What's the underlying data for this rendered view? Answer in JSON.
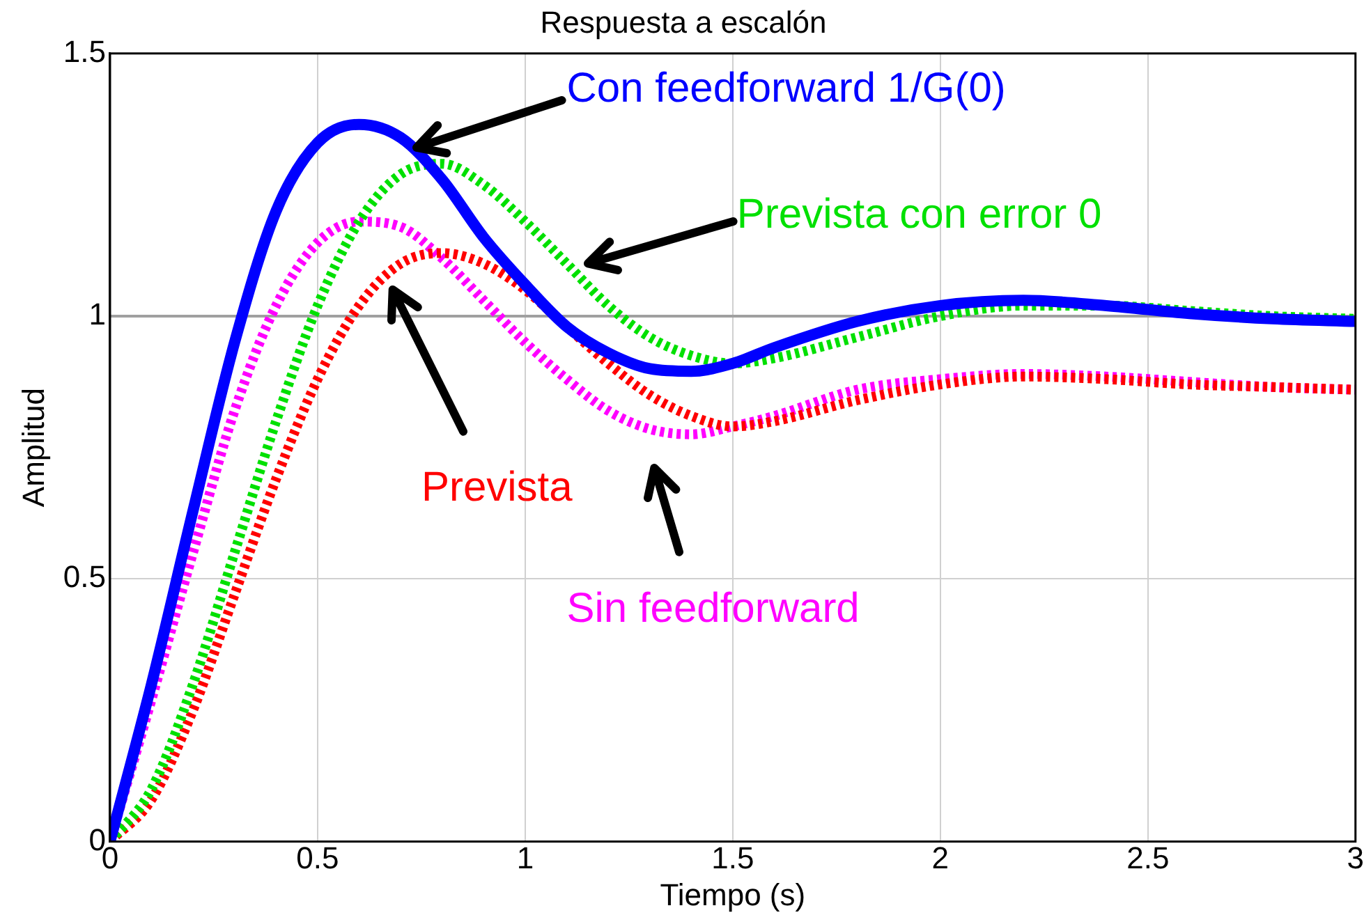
{
  "chart_data": {
    "type": "line",
    "title": "Respuesta a escalón",
    "xlabel": "Tiempo (s)",
    "ylabel": "Amplitud",
    "x": [
      0,
      0.1,
      0.2,
      0.3,
      0.4,
      0.5,
      0.6,
      0.7,
      0.8,
      0.9,
      1.0,
      1.1,
      1.2,
      1.3,
      1.4,
      1.5,
      1.6,
      1.8,
      2.0,
      2.2,
      2.4,
      2.6,
      2.8,
      3.0
    ],
    "series": [
      {
        "name": "Con feedforward 1/G(0)",
        "color": "#0000ff",
        "line_style": "solid",
        "values": [
          0,
          0.3,
          0.63,
          0.95,
          1.2,
          1.33,
          1.365,
          1.34,
          1.26,
          1.15,
          1.06,
          0.98,
          0.93,
          0.9,
          0.895,
          0.91,
          0.94,
          0.99,
          1.02,
          1.03,
          1.02,
          1.005,
          0.995,
          0.99
        ]
      },
      {
        "name": "Prevista con error 0",
        "color": "#00e000",
        "line_style": "dotted",
        "values": [
          0,
          0.1,
          0.3,
          0.55,
          0.8,
          1.02,
          1.18,
          1.27,
          1.29,
          1.25,
          1.18,
          1.1,
          1.02,
          0.96,
          0.925,
          0.91,
          0.92,
          0.96,
          1.0,
          1.02,
          1.02,
          1.01,
          1.0,
          0.995
        ]
      },
      {
        "name": "Prevista",
        "color": "#ff0000",
        "line_style": "dotted",
        "values": [
          0,
          0.08,
          0.25,
          0.47,
          0.69,
          0.88,
          1.02,
          1.1,
          1.12,
          1.1,
          1.05,
          0.98,
          0.91,
          0.85,
          0.81,
          0.79,
          0.8,
          0.84,
          0.87,
          0.885,
          0.88,
          0.87,
          0.865,
          0.86
        ]
      },
      {
        "name": "Sin feedforward",
        "color": "#ff00ff",
        "line_style": "dotted",
        "values": [
          0,
          0.27,
          0.55,
          0.82,
          1.02,
          1.14,
          1.18,
          1.17,
          1.11,
          1.03,
          0.95,
          0.88,
          0.82,
          0.785,
          0.775,
          0.79,
          0.81,
          0.86,
          0.88,
          0.89,
          0.885,
          0.875,
          0.865,
          0.86
        ]
      }
    ],
    "xlim": [
      0,
      3
    ],
    "xticks": [
      0,
      0.5,
      1,
      1.5,
      2,
      2.5,
      3
    ],
    "ylim": [
      0,
      1.5
    ],
    "yticks": [
      0,
      0.5,
      1,
      1.5
    ],
    "ref_lines": [
      {
        "axis": "y",
        "value": 1,
        "color": "#a0a0a0"
      }
    ],
    "grid": true,
    "legend": false
  }
}
